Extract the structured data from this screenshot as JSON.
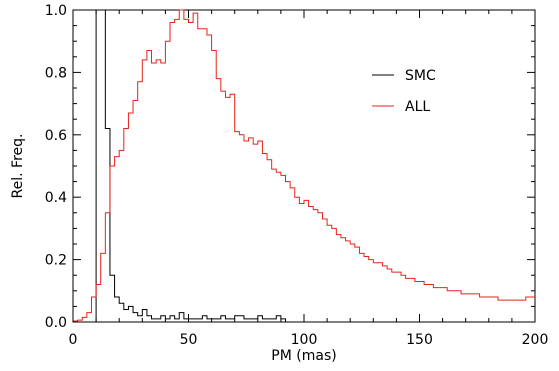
{
  "chart_data": {
    "type": "line",
    "title": "",
    "xlabel": "PM (mas)",
    "ylabel": "Rel. Freq.",
    "xlim": [
      0,
      200
    ],
    "ylim": [
      0,
      1.0
    ],
    "xticks": [
      "0",
      "50",
      "100",
      "150",
      "200"
    ],
    "yticks": [
      "0.0",
      "0.2",
      "0.4",
      "0.6",
      "0.8",
      "1.0"
    ],
    "grid": false,
    "legend_position": "top-right",
    "bin_width": 2,
    "series": [
      {
        "name": "SMC",
        "color": "#000000",
        "x_start": 0,
        "values": [
          0,
          0,
          0,
          0,
          0,
          1.0,
          1.0,
          0.62,
          0.15,
          0.08,
          0.06,
          0.04,
          0.05,
          0.03,
          0.02,
          0.04,
          0.02,
          0.01,
          0.01,
          0.02,
          0.01,
          0.02,
          0.01,
          0.03,
          0.01,
          0.01,
          0.01,
          0.01,
          0.02,
          0.01,
          0.01,
          0.01,
          0.02,
          0.01,
          0.01,
          0.02,
          0.02,
          0.01,
          0.01,
          0.01,
          0.02,
          0.01,
          0.01,
          0.01,
          0.02,
          0.01,
          0,
          0,
          0,
          0,
          0,
          0,
          0,
          0,
          0,
          0,
          0,
          0,
          0,
          0,
          0,
          0,
          0,
          0,
          0,
          0,
          0,
          0,
          0,
          0,
          0,
          0,
          0,
          0,
          0,
          0,
          0,
          0,
          0,
          0,
          0,
          0,
          0,
          0,
          0,
          0,
          0,
          0,
          0,
          0,
          0,
          0,
          0,
          0,
          0,
          0,
          0,
          0,
          0,
          0
        ]
      },
      {
        "name": "ALL",
        "color": "#e8231b",
        "x_start": 0,
        "values": [
          0.003,
          0.006,
          0.015,
          0.03,
          0.08,
          0.12,
          0.22,
          0.35,
          0.5,
          0.53,
          0.55,
          0.62,
          0.67,
          0.71,
          0.77,
          0.84,
          0.87,
          0.83,
          0.84,
          0.83,
          0.9,
          0.96,
          0.97,
          1.0,
          0.97,
          0.96,
          0.99,
          0.94,
          0.94,
          0.92,
          0.87,
          0.78,
          0.74,
          0.72,
          0.73,
          0.61,
          0.6,
          0.58,
          0.59,
          0.57,
          0.58,
          0.54,
          0.52,
          0.49,
          0.48,
          0.47,
          0.45,
          0.43,
          0.4,
          0.38,
          0.39,
          0.37,
          0.36,
          0.35,
          0.33,
          0.31,
          0.3,
          0.28,
          0.27,
          0.26,
          0.25,
          0.24,
          0.22,
          0.21,
          0.2,
          0.19,
          0.19,
          0.18,
          0.17,
          0.16,
          0.16,
          0.15,
          0.14,
          0.14,
          0.13,
          0.13,
          0.12,
          0.12,
          0.11,
          0.11,
          0.11,
          0.1,
          0.1,
          0.1,
          0.09,
          0.09,
          0.09,
          0.09,
          0.08,
          0.08,
          0.08,
          0.08,
          0.07,
          0.07,
          0.07,
          0.07,
          0.07,
          0.07,
          0.08,
          0.08
        ]
      }
    ]
  }
}
